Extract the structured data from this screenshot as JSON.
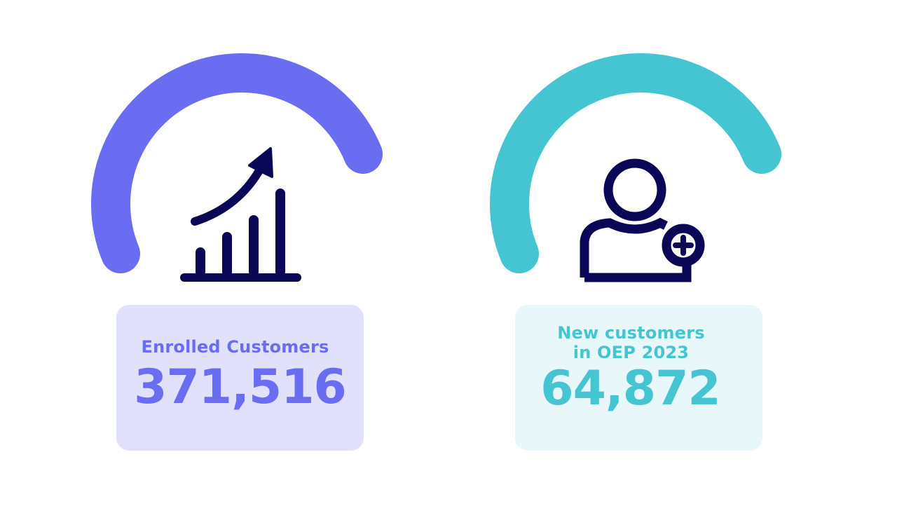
{
  "colors": {
    "purple": "#6a6cf2",
    "teal": "#45c4d2",
    "navy": "#0b0757",
    "purple_bg": "#e1e1fc",
    "teal_bg": "#e8f7f9"
  },
  "metrics": [
    {
      "label": "Enrolled Customers",
      "value": "371,516",
      "icon": "growth-chart-icon"
    },
    {
      "label_line1": "New customers",
      "label_line2": "in OEP 2023",
      "value": "64,872",
      "icon": "add-user-icon"
    }
  ]
}
